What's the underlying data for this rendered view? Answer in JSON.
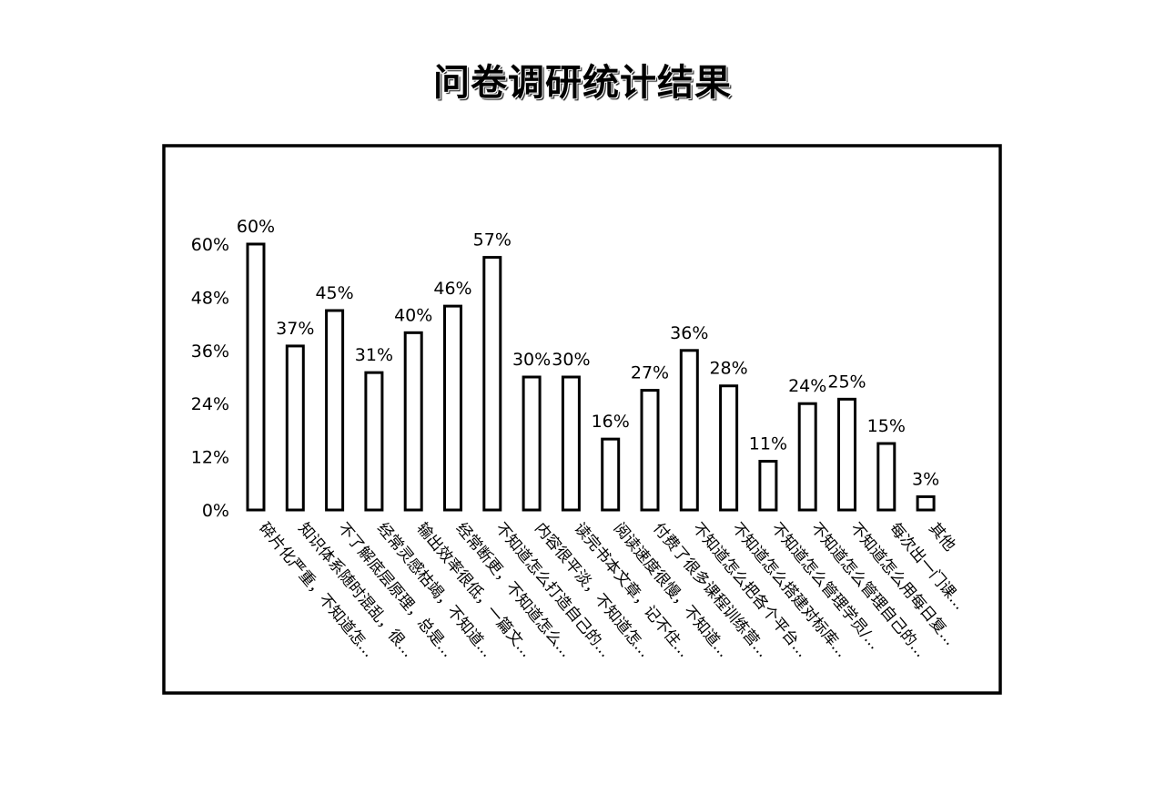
{
  "chart_data": {
    "type": "bar",
    "title": "问卷调研统计结果",
    "xlabel": "",
    "ylabel": "",
    "ylim": [
      0,
      60
    ],
    "yticks": [
      "0%",
      "12%",
      "24%",
      "36%",
      "48%",
      "60%"
    ],
    "ytick_values": [
      0,
      12,
      24,
      36,
      48,
      60
    ],
    "categories": [
      "碎片化严重，不知道怎...",
      "知识体系随时混乱，很...",
      "不了解底层原理，总是...",
      "经常灵感枯竭，不知道...",
      "输出效率很低，一篇文...",
      "经常断更，不知道怎么...",
      "不知道怎么打造自己的...",
      "内容很平淡，不知道怎...",
      "读完书本文章，记不住...",
      "阅读速度很慢，不知道...",
      "付费了很多课程训练营...",
      "不知道怎么把各个平台...",
      "不知道怎么搭建对标库...",
      "不知道怎么管理学员/...",
      "不知道怎么管理自己的...",
      "不知道怎么用每日复...",
      "每次出一门课...",
      "其他"
    ],
    "values": [
      60,
      37,
      45,
      31,
      40,
      46,
      57,
      30,
      30,
      16,
      27,
      36,
      28,
      11,
      24,
      25,
      15,
      3
    ],
    "data_labels": [
      "60%",
      "37%",
      "45%",
      "31%",
      "40%",
      "46%",
      "57%",
      "30%",
      "30%",
      "16%",
      "27%",
      "36%",
      "28%",
      "11%",
      "24%",
      "25%",
      "15%",
      "3%"
    ],
    "grid": false,
    "legend": "none",
    "bar_fill": "#ffffff",
    "bar_stroke": "#000000"
  }
}
